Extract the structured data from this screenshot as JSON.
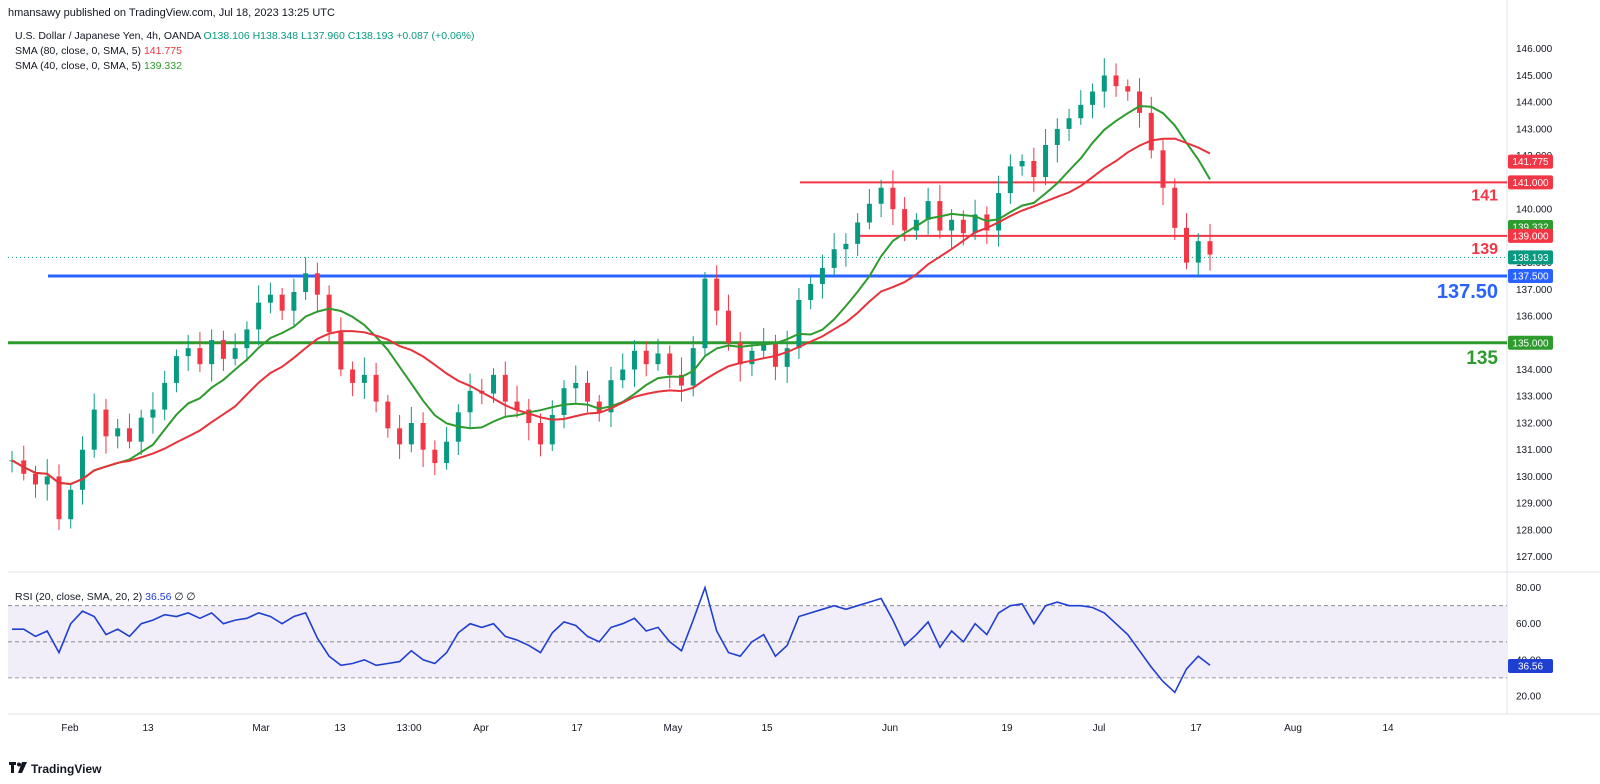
{
  "header": {
    "published": "hmansawy published on TradingView.com, Jul 18, 2023 13:25 UTC"
  },
  "legend": {
    "symbol": "U.S. Dollar / Japanese Yen, 4h, OANDA",
    "open": "O138.106",
    "high": "H138.348",
    "low": "L137.960",
    "close": "C138.193",
    "change": "+0.087 (+0.06%)",
    "sma80_label": "SMA (80, close, 0, SMA, 5)",
    "sma80_value": "141.775",
    "sma40_label": "SMA (40, close, 0, SMA, 5)",
    "sma40_value": "139.332"
  },
  "rsi_legend": {
    "label": "RSI (20, close, SMA, 20, 2)",
    "value": "36.56",
    "extra": "∅ ∅"
  },
  "brand": {
    "name": "TradingView"
  },
  "colors": {
    "up": "#089981",
    "down": "#f23645",
    "sma80": "#e8323c",
    "sma40": "#2e9b2e",
    "level_blue": "#2962ff",
    "level_green": "#2e9b2e",
    "level_red": "#f23645",
    "rsi": "#1f3fd1",
    "rsi_band": "#ede7f6"
  },
  "chart_data": [
    {
      "type": "candlestick",
      "title": "U.S. Dollar / Japanese Yen, 4h, OANDA",
      "x_ticks": [
        "Feb",
        "13",
        "Mar",
        "13",
        "13:00",
        "Apr",
        "17",
        "May",
        "15",
        "Jun",
        "19",
        "Jul",
        "17",
        "Aug",
        "14"
      ],
      "y_ticks": [
        127.0,
        128.0,
        129.0,
        130.0,
        131.0,
        132.0,
        133.0,
        134.0,
        135.0,
        136.0,
        137.0,
        138.0,
        139.0,
        140.0,
        141.0,
        142.0,
        143.0,
        144.0,
        145.0,
        146.0
      ],
      "ylim": [
        126.5,
        147.0
      ],
      "price_close": [
        130.6,
        130.1,
        129.7,
        130.0,
        128.4,
        129.5,
        131.0,
        132.5,
        131.5,
        131.8,
        131.3,
        132.2,
        132.5,
        133.5,
        134.5,
        134.8,
        134.2,
        135.1,
        134.4,
        134.8,
        135.5,
        136.5,
        136.8,
        136.2,
        136.9,
        137.6,
        136.8,
        135.4,
        134.0,
        133.5,
        133.8,
        132.8,
        131.8,
        131.2,
        132.0,
        131.0,
        130.5,
        131.3,
        132.4,
        133.2,
        133.1,
        133.8,
        132.8,
        132.5,
        132.0,
        131.2,
        132.3,
        133.3,
        133.5,
        132.8,
        132.4,
        133.6,
        134.0,
        134.7,
        134.2,
        134.6,
        133.8,
        133.4,
        134.8,
        137.4,
        136.2,
        135.0,
        134.2,
        134.7,
        135.0,
        134.1,
        134.8,
        136.6,
        137.2,
        137.8,
        138.5,
        138.7,
        139.5,
        140.2,
        140.8,
        140.0,
        139.2,
        139.6,
        140.3,
        139.2,
        139.6,
        139.1,
        139.8,
        139.2,
        140.6,
        141.6,
        141.8,
        141.2,
        142.4,
        143.0,
        143.4,
        143.9,
        144.4,
        145.0,
        144.6,
        144.4,
        143.6,
        142.2,
        140.8,
        139.3,
        138.0,
        138.8,
        138.3
      ],
      "series": [
        {
          "name": "SMA (80, close, 0, SMA, 5)",
          "last": 141.775
        },
        {
          "name": "SMA (40, close, 0, SMA, 5)",
          "last": 139.332
        }
      ],
      "horizontal_levels": [
        {
          "value": 141.0,
          "label": "141"
        },
        {
          "value": 139.0,
          "label": "139"
        },
        {
          "value": 137.5,
          "label": "137.50"
        },
        {
          "value": 135.0,
          "label": "135"
        }
      ],
      "price_badges": [
        "141.775",
        "141.000",
        "139.332",
        "139.000",
        "138.193",
        "137.500",
        "135.000"
      ],
      "last_price": 138.193
    },
    {
      "type": "line",
      "title": "RSI (20, close, SMA, 20, 2)",
      "y_ticks": [
        20.0,
        40.0,
        60.0,
        80.0
      ],
      "ylim": [
        10,
        87
      ],
      "bands": [
        30,
        50,
        70
      ],
      "rsi_values": [
        57,
        57,
        53,
        56,
        44,
        60,
        67,
        64,
        54,
        57,
        53,
        60,
        62,
        65,
        64,
        66,
        63,
        66,
        60,
        62,
        63,
        66,
        64,
        60,
        64,
        66,
        52,
        42,
        37,
        38,
        40,
        37,
        38,
        39,
        45,
        40,
        38,
        44,
        55,
        60,
        58,
        60,
        53,
        51,
        48,
        44,
        55,
        61,
        59,
        53,
        50,
        58,
        60,
        63,
        56,
        58,
        50,
        45,
        62,
        80,
        56,
        44,
        42,
        50,
        54,
        42,
        48,
        64,
        66,
        68,
        70,
        68,
        70,
        72,
        74,
        62,
        48,
        54,
        61,
        47,
        56,
        50,
        60,
        54,
        66,
        70,
        71,
        60,
        70,
        72,
        70,
        70,
        69,
        66,
        60,
        54,
        45,
        36,
        28,
        22,
        35,
        42,
        37
      ],
      "last_value": 36.56
    }
  ]
}
